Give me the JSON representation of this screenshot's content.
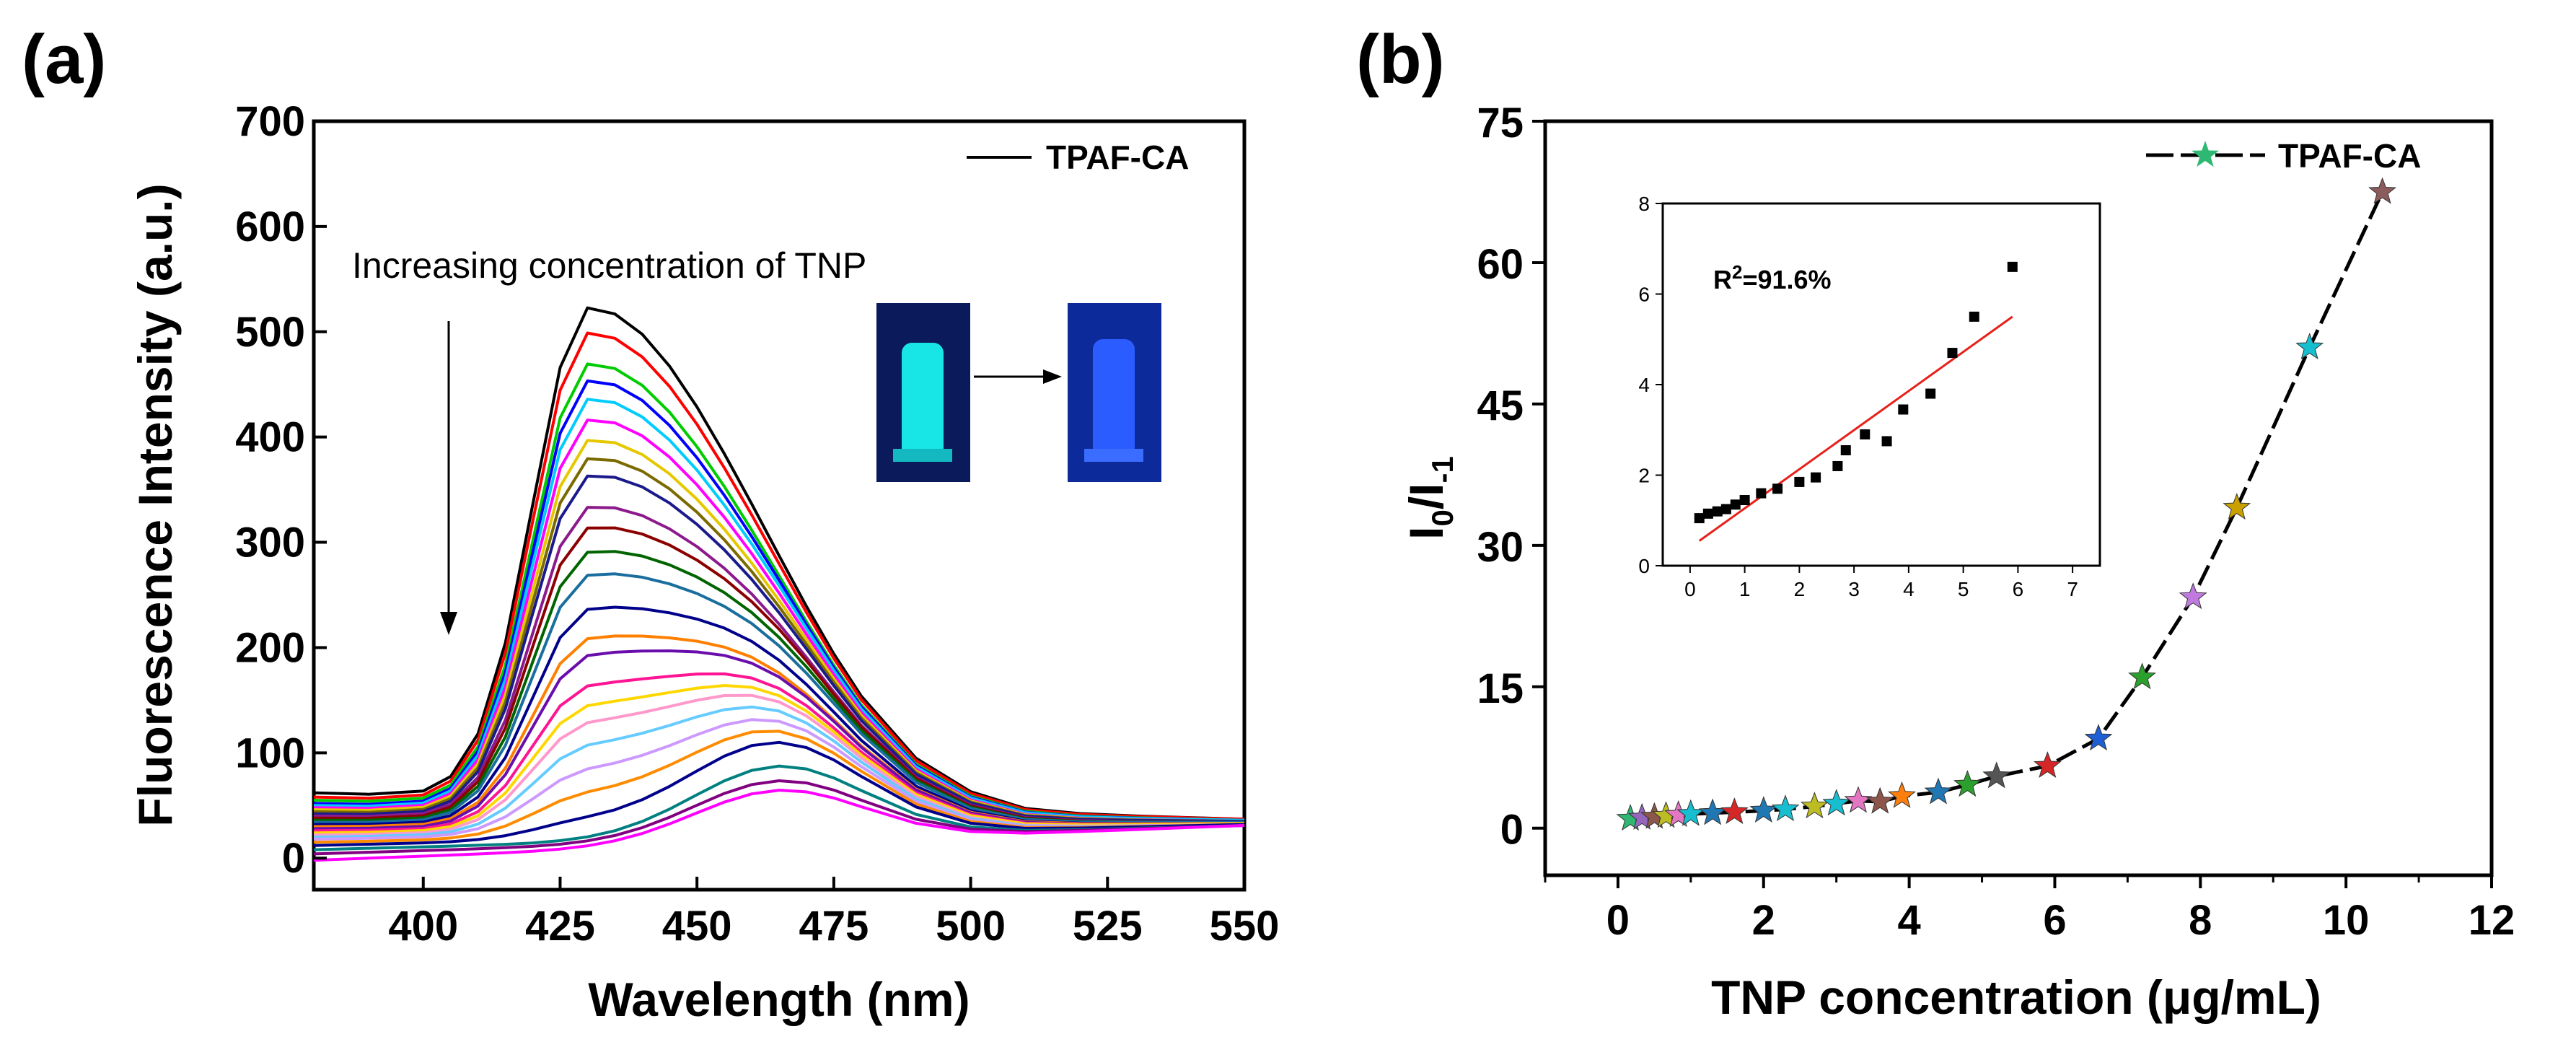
{
  "panels": {
    "a": {
      "letter": "(a)"
    },
    "b": {
      "letter": "(b)"
    }
  },
  "chart_data": [
    {
      "id": "a",
      "type": "line",
      "xlabel": "Wavelength (nm)",
      "ylabel": "Fluorescence Intensity (a.u.)",
      "xlim": [
        380,
        550
      ],
      "ylim": [
        -30,
        700
      ],
      "xticks": [
        400,
        425,
        450,
        475,
        500,
        525,
        550
      ],
      "yticks": [
        0,
        100,
        200,
        300,
        400,
        500,
        600,
        700
      ],
      "legend": {
        "label": "TPAF-CA",
        "placement": "top-right"
      },
      "annotation": "Increasing concentration of TNP",
      "inset_photos": {
        "left_color": "#18e6e6",
        "right_color": "#2a5cff"
      },
      "x": [
        380,
        390,
        400,
        405,
        410,
        415,
        420,
        425,
        430,
        435,
        440,
        445,
        450,
        455,
        460,
        465,
        470,
        475,
        480,
        490,
        500,
        510,
        520,
        530,
        540,
        550
      ],
      "series": [
        {
          "color": "#000000",
          "peak": 530,
          "base": 62,
          "tail": 37,
          "sh": 0.08
        },
        {
          "color": "#ff0000",
          "peak": 505,
          "base": 58,
          "tail": 37,
          "sh": 0.09
        },
        {
          "color": "#00cc00",
          "peak": 475,
          "base": 55,
          "tail": 36,
          "sh": 0.1
        },
        {
          "color": "#0000ff",
          "peak": 458,
          "base": 52,
          "tail": 36,
          "sh": 0.11
        },
        {
          "color": "#00ccff",
          "peak": 440,
          "base": 50,
          "tail": 36,
          "sh": 0.12
        },
        {
          "color": "#ff00ff",
          "peak": 420,
          "base": 48,
          "tail": 35,
          "sh": 0.13
        },
        {
          "color": "#e6c800",
          "peak": 400,
          "base": 46,
          "tail": 35,
          "sh": 0.14
        },
        {
          "color": "#7a6a00",
          "peak": 382,
          "base": 44,
          "tail": 35,
          "sh": 0.15
        },
        {
          "color": "#1a1a8c",
          "peak": 365,
          "base": 42,
          "tail": 35,
          "sh": 0.16
        },
        {
          "color": "#8c1a8c",
          "peak": 335,
          "base": 40,
          "tail": 34,
          "sh": 0.18
        },
        {
          "color": "#8c0000",
          "peak": 315,
          "base": 38,
          "tail": 34,
          "sh": 0.2
        },
        {
          "color": "#006400",
          "peak": 292,
          "base": 36,
          "tail": 34,
          "sh": 0.22
        },
        {
          "color": "#1a6e9e",
          "peak": 270,
          "base": 34,
          "tail": 34,
          "sh": 0.24
        },
        {
          "color": "#00008b",
          "peak": 238,
          "base": 32,
          "tail": 33,
          "sh": 0.27
        },
        {
          "color": "#ff7f00",
          "peak": 210,
          "base": 30,
          "tail": 33,
          "sh": 0.3
        },
        {
          "color": "#6a0dad",
          "peak": 195,
          "base": 28,
          "tail": 33,
          "sh": 0.33
        },
        {
          "color": "#ff1493",
          "peak": 172,
          "base": 26,
          "tail": 33,
          "sh": 0.38
        },
        {
          "color": "#ffd700",
          "peak": 160,
          "base": 24,
          "tail": 33,
          "sh": 0.42
        },
        {
          "color": "#ff99cc",
          "peak": 150,
          "base": 22,
          "tail": 32,
          "sh": 0.46
        },
        {
          "color": "#66ccff",
          "peak": 138,
          "base": 20,
          "tail": 32,
          "sh": 0.52
        },
        {
          "color": "#cc99ff",
          "peak": 125,
          "base": 18,
          "tail": 32,
          "sh": 0.6
        },
        {
          "color": "#ff8c00",
          "peak": 112,
          "base": 15,
          "tail": 32,
          "sh": 0.7
        },
        {
          "color": "#00008b",
          "peak": 100,
          "base": 12,
          "tail": 32,
          "sh": 0.85
        },
        {
          "color": "#008080",
          "peak": 76,
          "base": 8,
          "tail": 31,
          "sh": 1.0
        },
        {
          "color": "#800080",
          "peak": 60,
          "base": 4,
          "tail": 31,
          "sh": 1.0
        },
        {
          "color": "#ff00ff",
          "peak": 48,
          "base": -2,
          "tail": 31,
          "sh": 1.0
        }
      ]
    },
    {
      "id": "b",
      "type": "line",
      "xlabel": "TNP concentration (μg/mL)",
      "ylabel": "I0/I-1",
      "xlim": [
        -1,
        12
      ],
      "ylim": [
        -5,
        75
      ],
      "xticks": [
        0,
        2,
        4,
        6,
        8,
        10,
        12
      ],
      "yticks": [
        0,
        15,
        30,
        45,
        60,
        75
      ],
      "legend": {
        "label": "TPAF-CA",
        "placement": "top-right",
        "marker_color": "#2eb872"
      },
      "series": [
        {
          "name": "TPAF-CA",
          "x": [
            0.17,
            0.33,
            0.5,
            0.66,
            0.83,
            1.0,
            1.3,
            1.6,
            2.0,
            2.3,
            2.7,
            3.0,
            3.3,
            3.6,
            3.9,
            4.4,
            4.8,
            5.2,
            5.9,
            6.6,
            7.2,
            7.9,
            8.5,
            9.5,
            10.5
          ],
          "y": [
            1.0,
            1.1,
            1.2,
            1.3,
            1.4,
            1.5,
            1.6,
            1.7,
            1.85,
            2.0,
            2.3,
            2.6,
            2.9,
            2.8,
            3.4,
            3.8,
            4.6,
            5.5,
            6.6,
            9.5,
            16,
            24.5,
            34,
            51,
            67.5
          ],
          "marker_colors": [
            "#2eb872",
            "#9467bd",
            "#8c564b",
            "#bcbd22",
            "#e377c2",
            "#17becf",
            "#1f77b4",
            "#d62728",
            "#1f77b4",
            "#17becf",
            "#bcbd22",
            "#17becf",
            "#e377c2",
            "#8c564b",
            "#ff7f0e",
            "#1f77b4",
            "#2ca02c",
            "#555555",
            "#d62728",
            "#1f5fd6",
            "#2ca02c",
            "#c07adf",
            "#c9a000",
            "#17becf",
            "#8c5c5c"
          ]
        }
      ],
      "inset": {
        "xlim": [
          -0.5,
          7.5
        ],
        "ylim": [
          0,
          8
        ],
        "xticks": [
          0,
          1,
          2,
          3,
          4,
          5,
          6,
          7
        ],
        "yticks": [
          0,
          2,
          4,
          6,
          8
        ],
        "r2_label": "R",
        "r2_sup": "2",
        "r2_value": "=91.6%",
        "points_x": [
          0.17,
          0.33,
          0.5,
          0.66,
          0.83,
          1.0,
          1.3,
          1.6,
          2.0,
          2.3,
          2.7,
          2.85,
          3.2,
          3.6,
          3.9,
          4.4,
          4.8,
          5.2,
          5.9
        ],
        "points_y": [
          1.05,
          1.15,
          1.2,
          1.25,
          1.35,
          1.45,
          1.6,
          1.7,
          1.85,
          1.95,
          2.2,
          2.55,
          2.9,
          2.75,
          3.45,
          3.8,
          4.7,
          5.5,
          6.6
        ],
        "fit": {
          "x": [
            0.17,
            5.9
          ],
          "y": [
            0.55,
            5.5
          ],
          "color": "#e8201a"
        }
      }
    }
  ]
}
